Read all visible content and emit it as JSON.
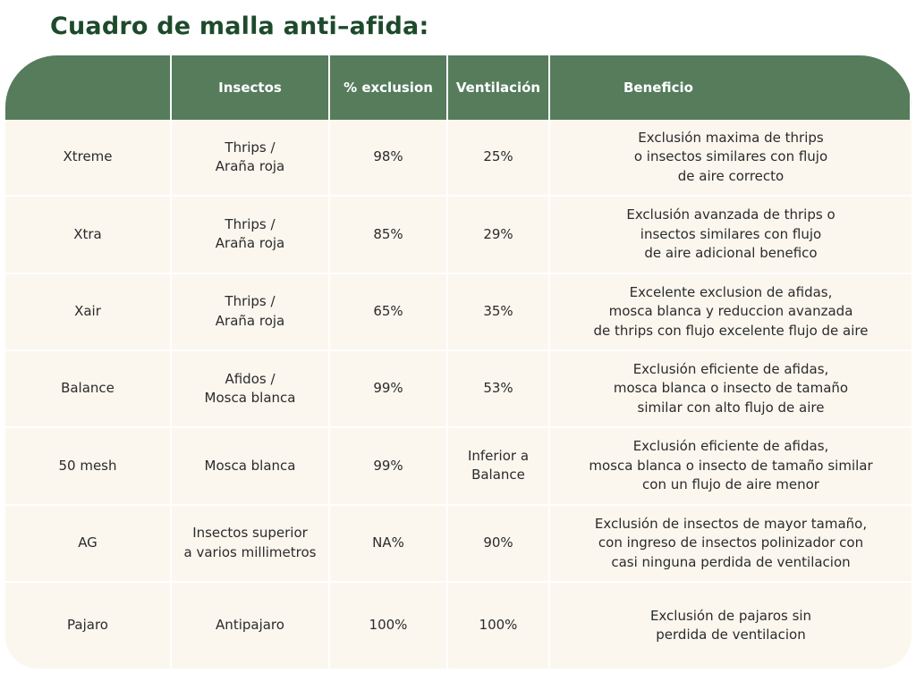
{
  "title": "Cuadro de malla anti–afida:",
  "colors": {
    "header_bg": "#567c5c",
    "title": "#1e4a2c",
    "row_bg": "#fbf7ef"
  },
  "headers": [
    "",
    "Insectos",
    "% exclusion",
    "Ventilación",
    "Beneficio"
  ],
  "rows": [
    {
      "name": "Xtreme",
      "insects": "Thrips /\nAraña roja",
      "exclusion": "98%",
      "ventilation": "25%",
      "benefit": "Exclusión maxima de thrips\no insectos similares con flujo\nde aire correcto"
    },
    {
      "name": "Xtra",
      "insects": "Thrips /\nAraña roja",
      "exclusion": "85%",
      "ventilation": "29%",
      "benefit": "Exclusión avanzada de thrips o\ninsectos similares con flujo\nde aire adicional benefico"
    },
    {
      "name": "Xair",
      "insects": "Thrips /\nAraña roja",
      "exclusion": "65%",
      "ventilation": "35%",
      "benefit": "Excelente exclusion de afidas,\nmosca blanca y reduccion avanzada\nde thrips con flujo excelente flujo de aire"
    },
    {
      "name": "Balance",
      "insects": "Afidos /\nMosca blanca",
      "exclusion": "99%",
      "ventilation": "53%",
      "benefit": "Exclusión eficiente de afidas,\nmosca blanca o insecto de tamaño\nsimilar con alto flujo de aire"
    },
    {
      "name": "50 mesh",
      "insects": "Mosca blanca",
      "exclusion": "99%",
      "ventilation": "Inferior a\nBalance",
      "benefit": "Exclusión eficiente de afidas,\nmosca blanca o insecto de tamaño similar\ncon un flujo de aire menor"
    },
    {
      "name": "AG",
      "insects": "Insectos superior\na varios millimetros",
      "exclusion": "NA%",
      "ventilation": "90%",
      "benefit": "Exclusión de insectos de mayor tamaño,\ncon ingreso de insectos polinizador con\ncasi ninguna perdida de ventilacion"
    },
    {
      "name": "Pajaro",
      "insects": "Antipajaro",
      "exclusion": "100%",
      "ventilation": "100%",
      "benefit": "Exclusión de pajaros sin\nperdida de ventilacion"
    }
  ]
}
